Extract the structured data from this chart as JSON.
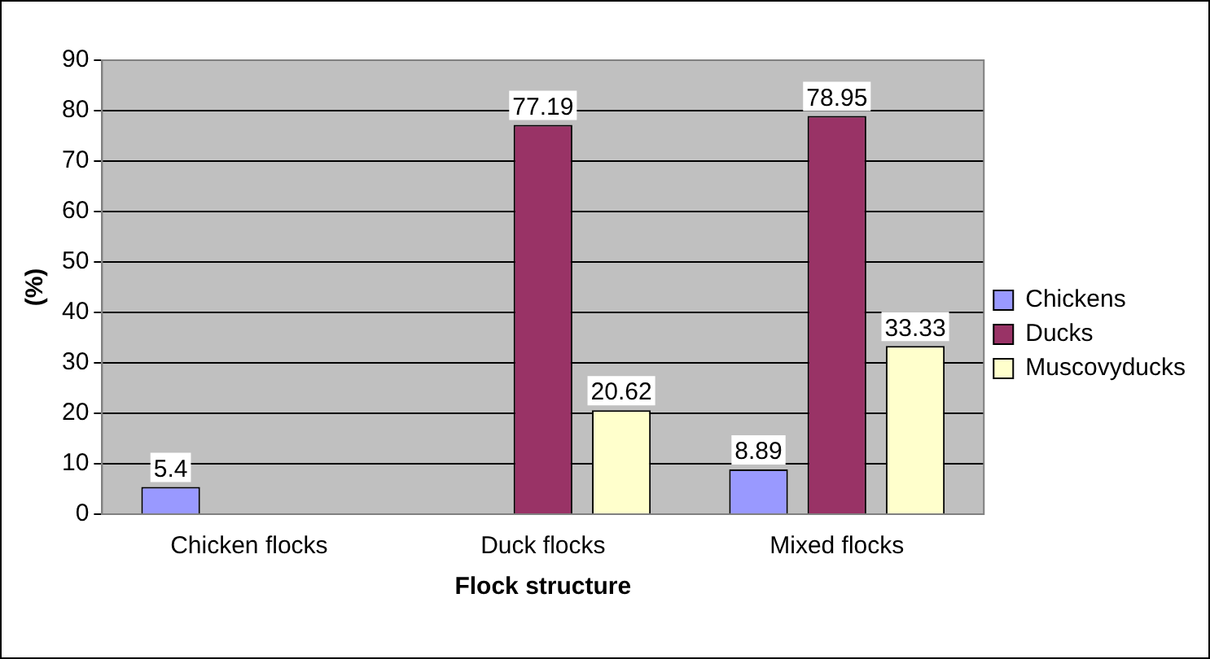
{
  "chart_data": {
    "type": "bar",
    "xlabel": "Flock structure",
    "ylabel": "(%)",
    "categories": [
      "Chicken flocks",
      "Duck flocks",
      "Mixed flocks"
    ],
    "series": [
      {
        "name": "Chickens",
        "color": "#9999ff",
        "values": [
          5.4,
          null,
          8.89
        ]
      },
      {
        "name": "Ducks",
        "color": "#993366",
        "values": [
          null,
          77.19,
          78.95
        ]
      },
      {
        "name": "Muscovyducks",
        "color": "#ffffcc",
        "values": [
          null,
          20.62,
          33.33
        ]
      }
    ],
    "ylim": [
      0,
      90
    ],
    "yticks": [
      0,
      10,
      20,
      30,
      40,
      50,
      60,
      70,
      80,
      90
    ],
    "grid": "y",
    "legend": "right",
    "data_labels": true
  }
}
